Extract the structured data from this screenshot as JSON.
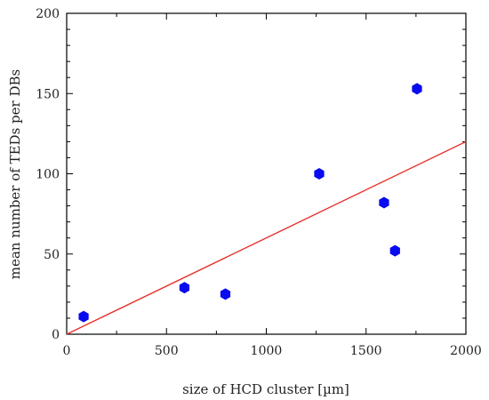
{
  "chart_data": {
    "type": "scatter",
    "xlabel": "size of HCD cluster [µm]",
    "ylabel": "mean number of TEDs per DBs",
    "xlim": [
      0,
      2000
    ],
    "ylim": [
      0,
      200
    ],
    "x_ticks": [
      0,
      500,
      1000,
      1500,
      2000
    ],
    "y_ticks": [
      0,
      50,
      100,
      150,
      200
    ],
    "x_tick_labels": [
      "0",
      "500",
      "1000",
      "1500",
      "2000"
    ],
    "y_tick_labels": [
      "0",
      "50",
      "100",
      "150",
      "200"
    ],
    "grid": false,
    "series": [
      {
        "marker": "hexagon",
        "color": "#0a0af0",
        "points": [
          {
            "x": 85,
            "y": 11
          },
          {
            "x": 590,
            "y": 29
          },
          {
            "x": 795,
            "y": 25
          },
          {
            "x": 1265,
            "y": 100
          },
          {
            "x": 1590,
            "y": 82
          },
          {
            "x": 1645,
            "y": 52
          },
          {
            "x": 1755,
            "y": 153
          }
        ]
      }
    ],
    "fit_line": {
      "color": "#e8322c",
      "x": [
        0,
        2000
      ],
      "y": [
        0,
        120
      ]
    }
  }
}
